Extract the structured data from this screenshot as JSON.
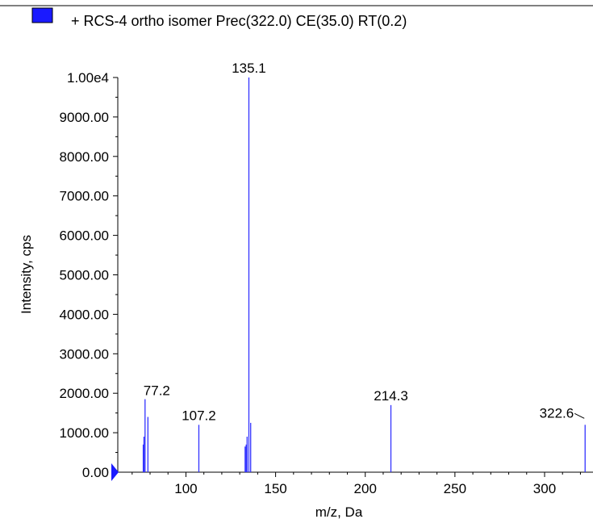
{
  "chart_data": {
    "type": "bar",
    "legend": {
      "label": "+ RCS-4 ortho isomer Prec(322.0) CE(35.0) RT(0.2)",
      "color": "#1a1aff",
      "placement": "top-left"
    },
    "xlabel": "m/z, Da",
    "ylabel": "Intensity, cps",
    "xlim": [
      62,
      327
    ],
    "ylim": [
      0,
      10000
    ],
    "x_ticks": [
      100,
      150,
      200,
      250,
      300
    ],
    "y_ticks": [
      {
        "value": 0,
        "label": "0.00"
      },
      {
        "value": 1000,
        "label": "1000.00"
      },
      {
        "value": 2000,
        "label": "2000.00"
      },
      {
        "value": 3000,
        "label": "3000.00"
      },
      {
        "value": 4000,
        "label": "4000.00"
      },
      {
        "value": 5000,
        "label": "5000.00"
      },
      {
        "value": 6000,
        "label": "6000.00"
      },
      {
        "value": 7000,
        "label": "7000.00"
      },
      {
        "value": 8000,
        "label": "8000.00"
      },
      {
        "value": 9000,
        "label": "9000.00"
      },
      {
        "value": 10000,
        "label": "1.00e4"
      }
    ],
    "series": [
      {
        "color": "#3333ff",
        "peaks": [
          {
            "x": 76.2,
            "y": 700
          },
          {
            "x": 76.6,
            "y": 900
          },
          {
            "x": 77.2,
            "y": 1850
          },
          {
            "x": 78.8,
            "y": 1400
          },
          {
            "x": 107.2,
            "y": 1200
          },
          {
            "x": 133.0,
            "y": 650
          },
          {
            "x": 133.6,
            "y": 700
          },
          {
            "x": 134.1,
            "y": 900
          },
          {
            "x": 135.1,
            "y": 10000
          },
          {
            "x": 136.1,
            "y": 1250
          },
          {
            "x": 214.3,
            "y": 1700
          },
          {
            "x": 322.6,
            "y": 1200
          }
        ]
      }
    ],
    "peak_labels": [
      "77.2",
      "107.2",
      "135.1",
      "214.3",
      "322.6"
    ],
    "grid": false
  }
}
